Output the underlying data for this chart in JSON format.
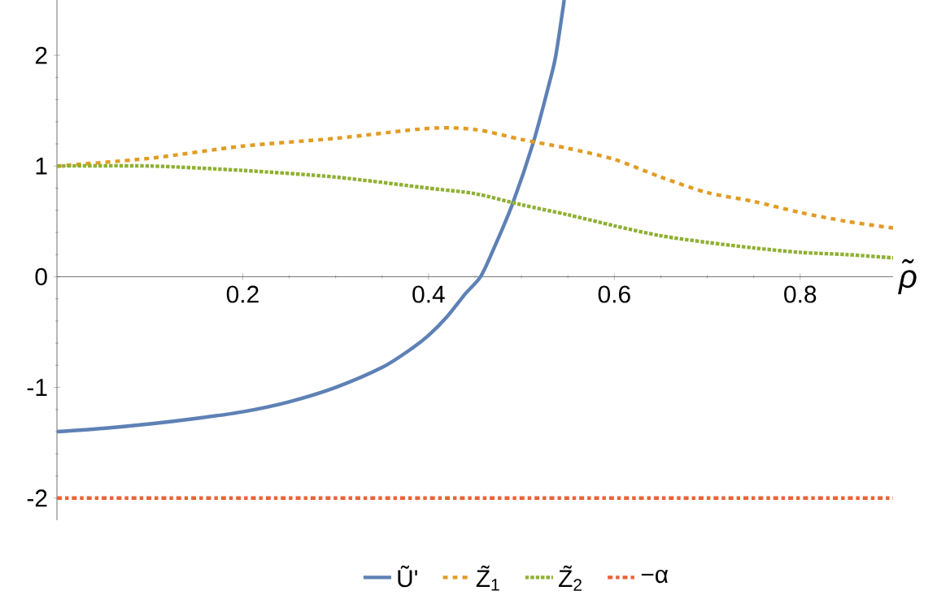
{
  "chart_data": {
    "type": "line",
    "xlabel": "ρ̃",
    "xlim": [
      0,
      0.9
    ],
    "ylim": [
      -2.2,
      2.5
    ],
    "xticks": [
      0.2,
      0.4,
      0.6,
      0.8
    ],
    "yticks": [
      -2,
      -1,
      0,
      1,
      2
    ],
    "legend": "bottom",
    "series": [
      {
        "name": "Ũ'",
        "color": "#5e81b5",
        "line_style": "solid",
        "x": [
          0,
          0.05,
          0.1,
          0.15,
          0.2,
          0.25,
          0.3,
          0.35,
          0.38,
          0.4,
          0.42,
          0.44,
          0.456,
          0.47,
          0.49,
          0.513,
          0.53,
          0.537,
          0.546
        ],
        "values": [
          -1.4,
          -1.37,
          -1.33,
          -1.28,
          -1.22,
          -1.13,
          -1.0,
          -0.82,
          -0.66,
          -0.53,
          -0.36,
          -0.15,
          0,
          0.25,
          0.65,
          1.22,
          1.75,
          2.0,
          2.5
        ]
      },
      {
        "name": "Z̃$_{1}$",
        "color": "#e19c24",
        "line_style": "dashed",
        "x": [
          0,
          0.1,
          0.2,
          0.3,
          0.4,
          0.45,
          0.5,
          0.55,
          0.6,
          0.65,
          0.7,
          0.75,
          0.8,
          0.85,
          0.9
        ],
        "values": [
          1.0,
          1.07,
          1.18,
          1.25,
          1.34,
          1.33,
          1.24,
          1.16,
          1.06,
          0.9,
          0.76,
          0.68,
          0.58,
          0.5,
          0.44
        ]
      },
      {
        "name": "Z̃$_{2}$",
        "color": "#8fb032",
        "line_style": "dotted",
        "x": [
          0,
          0.1,
          0.2,
          0.3,
          0.4,
          0.45,
          0.5,
          0.55,
          0.6,
          0.65,
          0.7,
          0.75,
          0.8,
          0.85,
          0.9
        ],
        "values": [
          1.0,
          1.0,
          0.96,
          0.9,
          0.8,
          0.75,
          0.65,
          0.56,
          0.46,
          0.37,
          0.31,
          0.26,
          0.22,
          0.2,
          0.17
        ]
      },
      {
        "name": "−α",
        "color": "#eb6235",
        "line_style": "dashdot",
        "x": [
          0,
          0.9
        ],
        "values": [
          -2,
          -2
        ]
      }
    ]
  }
}
